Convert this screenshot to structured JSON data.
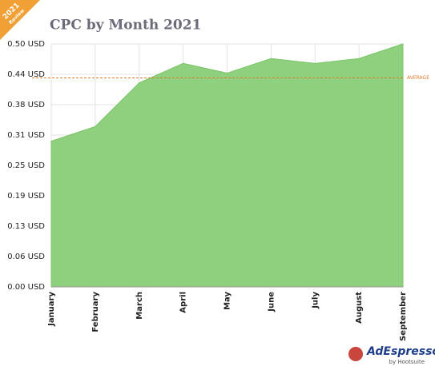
{
  "chart_data": {
    "type": "area",
    "title": "CPC by Month 2021",
    "categories": [
      "January",
      "February",
      "March",
      "April",
      "May",
      "June",
      "July",
      "August",
      "September"
    ],
    "values": [
      0.3,
      0.33,
      0.42,
      0.46,
      0.44,
      0.47,
      0.46,
      0.47,
      0.5
    ],
    "color": "#8fd07e",
    "line_color": "#7cc46a",
    "ylim": [
      0,
      0.5
    ],
    "yticks": [
      {
        "value": 0,
        "label": "0.00 USD"
      },
      {
        "value": 0.0625,
        "label": "0.06 USD"
      },
      {
        "value": 0.125,
        "label": "0.13 USD"
      },
      {
        "value": 0.1875,
        "label": "0.19 USD"
      },
      {
        "value": 0.25,
        "label": "0.25 USD"
      },
      {
        "value": 0.3125,
        "label": "0.31 USD"
      },
      {
        "value": 0.375,
        "label": "0.38 USD"
      },
      {
        "value": 0.4375,
        "label": "0.44 USD"
      },
      {
        "value": 0.5,
        "label": "0.50 USD"
      }
    ],
    "grid": true,
    "average": {
      "value": 0.43,
      "label": "AVERAGE",
      "color": "#e07b28"
    }
  },
  "badge": {
    "year": "2021",
    "label": "Review"
  },
  "logo": {
    "brand": "AdEspresso",
    "sub": "by Hootsuite"
  }
}
